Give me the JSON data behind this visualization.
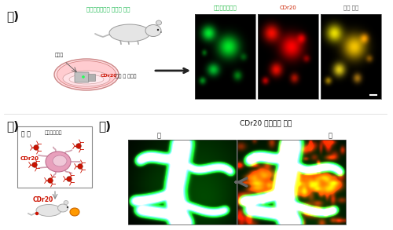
{
  "title_ga": "가)",
  "title_na": "나)",
  "title_da": "다)",
  "label_mouse_top": "미세아교세포가 표지된 생쥐",
  "label_brain_slice": "뇌절편",
  "label_cdr20_add": "CDr20 주가 후 이미징",
  "label_green": "녹색형광단백질",
  "label_red": "CDr20",
  "label_merged": "겹친 그림",
  "label_brain_inside": "뇌 안",
  "label_microglia": "미세아교세포",
  "label_cdr20_bottom": "CDr20",
  "label_da_title": "CDr20 꼬리정맥 주사",
  "label_before": "전",
  "label_after": "후",
  "white": "#ffffff",
  "black": "#000000"
}
